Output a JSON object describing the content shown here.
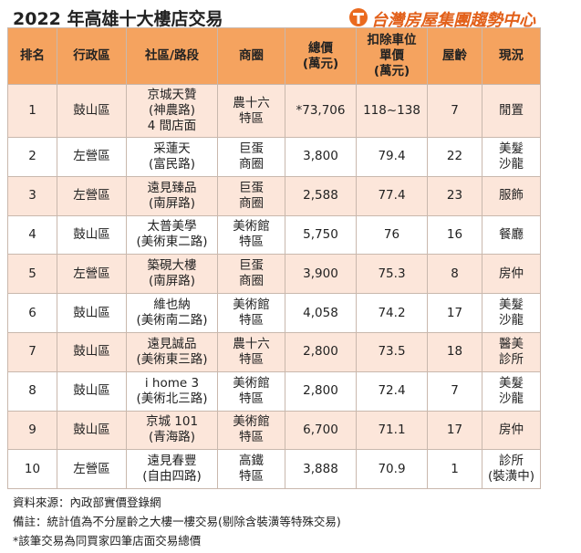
{
  "header": {
    "title": "2022 年高雄十大樓店交易",
    "logo": "台灣房屋集團趨勢中心"
  },
  "table": {
    "columns": [
      "排名",
      "行政區",
      "社區/路段",
      "商圈",
      "總價\n(萬元)",
      "扣除車位\n單價\n(萬元)",
      "屋齡",
      "現況"
    ],
    "rows": [
      [
        "1",
        "鼓山區",
        "京城天贊\n(神農路)\n4 間店面",
        "農十六\n特區",
        "*73,706",
        "118~138",
        "7",
        "閒置"
      ],
      [
        "2",
        "左營區",
        "采蓮天\n(富民路)",
        "巨蛋\n商圈",
        "3,800",
        "79.4",
        "22",
        "美髮\n沙龍"
      ],
      [
        "3",
        "左營區",
        "遠見臻品\n(南屏路)",
        "巨蛋\n商圈",
        "2,588",
        "77.4",
        "23",
        "服飾"
      ],
      [
        "4",
        "鼓山區",
        "太普美學\n(美術東二路)",
        "美術館\n特區",
        "5,750",
        "76",
        "16",
        "餐廳"
      ],
      [
        "5",
        "左營區",
        "築硯大樓\n(南屏路)",
        "巨蛋\n商圈",
        "3,900",
        "75.3",
        "8",
        "房仲"
      ],
      [
        "6",
        "鼓山區",
        "維也納\n(美術南二路)",
        "美術館\n特區",
        "4,058",
        "74.2",
        "17",
        "美髮\n沙龍"
      ],
      [
        "7",
        "鼓山區",
        "遠見誠品\n(美術東三路)",
        "農十六\n特區",
        "2,800",
        "73.5",
        "18",
        "醫美\n診所"
      ],
      [
        "8",
        "鼓山區",
        "i home 3\n(美術北三路)",
        "美術館\n特區",
        "2,800",
        "72.4",
        "7",
        "美髮\n沙龍"
      ],
      [
        "9",
        "鼓山區",
        "京城 101\n(青海路)",
        "美術館\n特區",
        "6,700",
        "71.1",
        "17",
        "房仲"
      ],
      [
        "10",
        "左營區",
        "遠見春豐\n(自由四路)",
        "高鐵\n特區",
        "3,888",
        "70.9",
        "1",
        "診所\n(裝潢中)"
      ]
    ]
  },
  "notes": [
    "資料來源：內政部實價登錄網",
    "備註：統計值為不分屋齡之大樓一樓交易(剔除含裝潢等特殊交易)",
    "*該筆交易為同買家四筆店面交易總價"
  ]
}
